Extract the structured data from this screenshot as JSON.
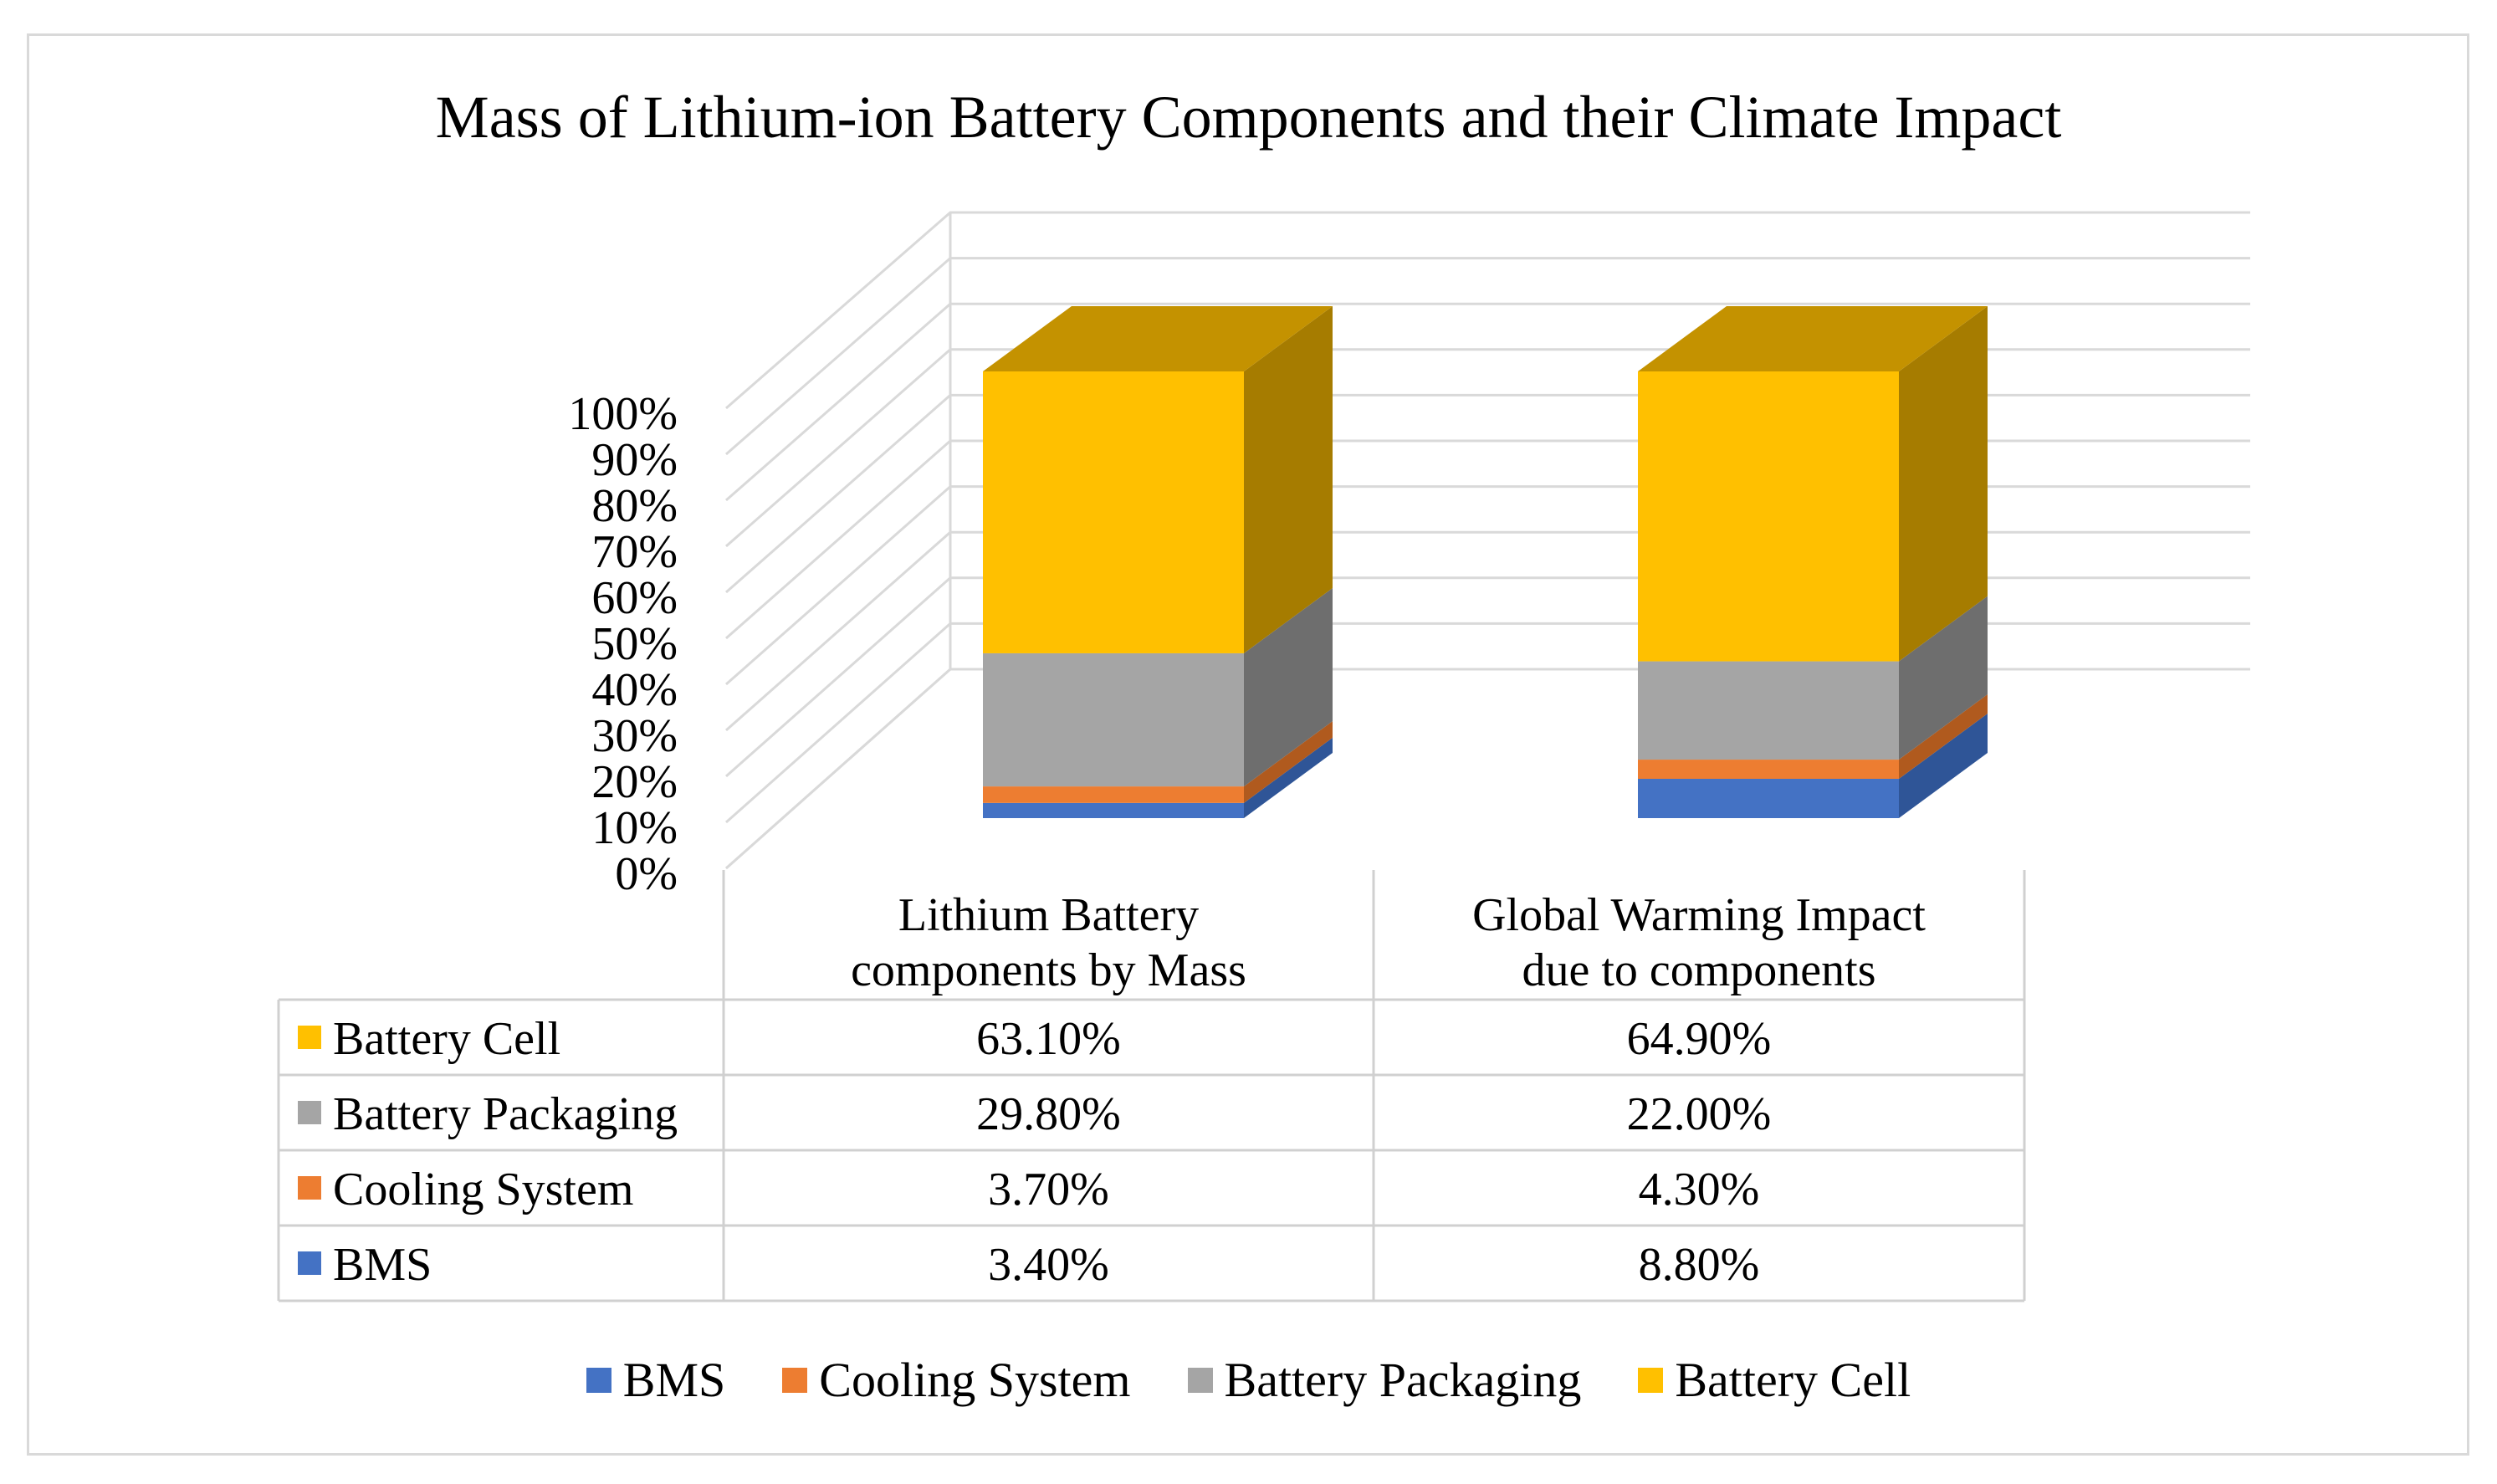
{
  "chart_data": {
    "type": "bar",
    "subtype": "stacked-100-percent-3d",
    "title": "Mass of Lithium-ion Battery Components and their Climate Impact",
    "categories": [
      [
        "Lithium Battery",
        "components by Mass"
      ],
      [
        "Global Warming Impact",
        "due to components"
      ]
    ],
    "yticks": [
      "0%",
      "10%",
      "20%",
      "30%",
      "40%",
      "50%",
      "60%",
      "70%",
      "80%",
      "90%",
      "100%"
    ],
    "ylim": [
      0,
      100
    ],
    "series": [
      {
        "name": "BMS",
        "values": [
          3.4,
          8.8
        ],
        "labels": [
          "3.40%",
          "8.80%"
        ],
        "color": "#4472C4",
        "side_color": "#2F5597",
        "top_color": "#5B86D0"
      },
      {
        "name": "Cooling System",
        "values": [
          3.7,
          4.3
        ],
        "labels": [
          "3.70%",
          "4.30%"
        ],
        "color": "#ED7D31",
        "side_color": "#B05A1E",
        "top_color": "#F19050"
      },
      {
        "name": "Battery Packaging",
        "values": [
          29.8,
          22.0
        ],
        "labels": [
          "29.80%",
          "22.00%"
        ],
        "color": "#A5A5A5",
        "side_color": "#6E6E6E",
        "top_color": "#B8B8B8"
      },
      {
        "name": "Battery Cell",
        "values": [
          63.1,
          64.9
        ],
        "labels": [
          "63.10%",
          "64.90%"
        ],
        "color": "#FFC000",
        "side_color": "#A67C00",
        "top_color": "#C49200"
      }
    ],
    "table_row_order": [
      "Battery Cell",
      "Battery Packaging",
      "Cooling System",
      "BMS"
    ],
    "legend": {
      "position": "bottom",
      "order": [
        "BMS",
        "Cooling System",
        "Battery Packaging",
        "Battery Cell"
      ]
    },
    "grid": true
  }
}
